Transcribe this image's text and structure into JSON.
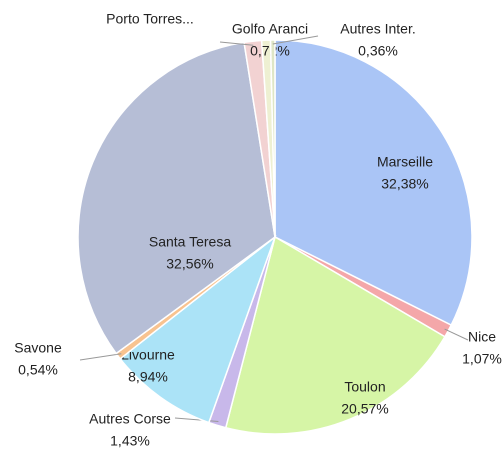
{
  "chart_data": {
    "type": "pie",
    "categories": [
      "Marseille",
      "Nice",
      "Toulon",
      "Autres Corse",
      "Livourne",
      "Savone",
      "Santa Teresa",
      "Porto Torres...",
      "Golfo Aranci",
      "Autres Inter."
    ],
    "values": [
      32.38,
      1.07,
      20.57,
      1.43,
      8.94,
      0.54,
      32.56,
      1.43,
      0.72,
      0.36
    ],
    "value_labels": [
      "32,38%",
      "1,07%",
      "20,57%",
      "1,43%",
      "8,94%",
      "0,54%",
      "32,56%",
      null,
      "0,72%",
      "0,36%"
    ],
    "colors": [
      "#aac5f6",
      "#f4a7a9",
      "#d6f5a6",
      "#c8b8ea",
      "#abe3f7",
      "#f8c390",
      "#b6bed6",
      "#f2d2d2",
      "#eef0d2",
      "#dfe6c6"
    ]
  }
}
